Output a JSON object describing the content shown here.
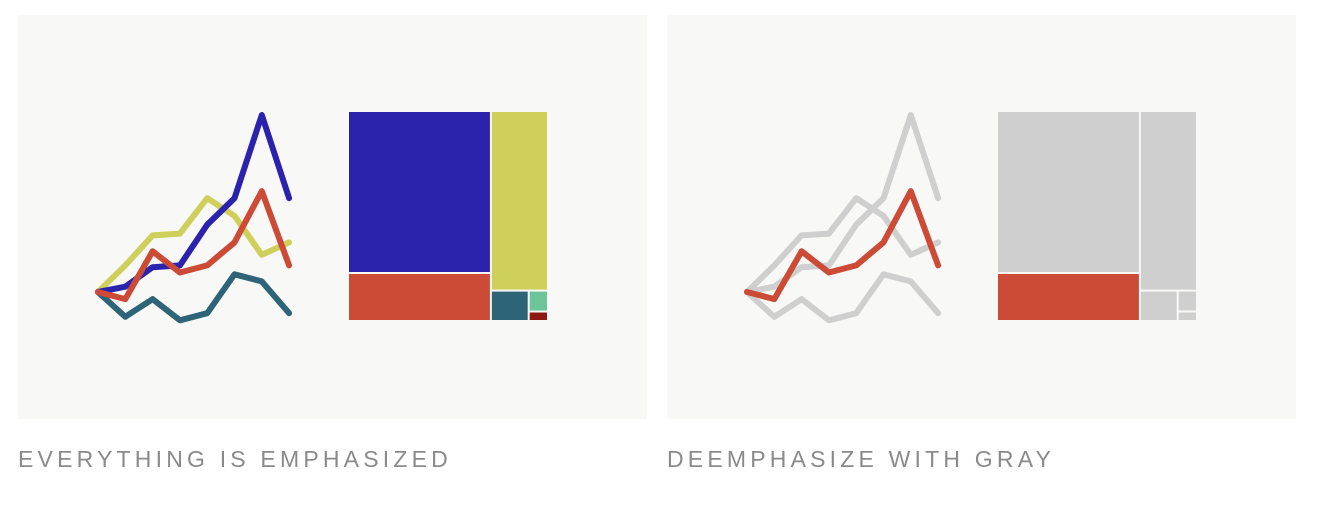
{
  "captions": {
    "left": "EVERYTHING IS EMPHASIZED",
    "right": "DEEMPHASIZE WITH GRAY"
  },
  "colors": {
    "panel_bg": "#f8f8f7",
    "caption": "#8a8a8a",
    "gray": "#cfcfcf",
    "blue": "#2b22ad",
    "yellow": "#cfcf5c",
    "red": "#cb4b37",
    "teal": "#2e6478",
    "mint": "#6cc49a",
    "darkred": "#8c1a12"
  },
  "line_series": [
    {
      "key": "yellow",
      "values": [
        0.0,
        1.5,
        3.2,
        3.3,
        5.3,
        4.3,
        2.1,
        2.8
      ]
    },
    {
      "key": "blue",
      "values": [
        0.0,
        0.3,
        1.4,
        1.5,
        3.8,
        5.3,
        10.0,
        5.3
      ]
    },
    {
      "key": "teal",
      "values": [
        0.0,
        -1.4,
        -0.4,
        -1.6,
        -1.2,
        1.0,
        0.6,
        -1.2
      ]
    },
    {
      "key": "red",
      "values": [
        0.0,
        -0.4,
        2.3,
        1.1,
        1.5,
        2.8,
        5.7,
        1.5
      ]
    }
  ],
  "treemap": {
    "blocks": [
      {
        "key": "blue",
        "weight": 100
      },
      {
        "key": "red",
        "weight": 30
      },
      {
        "key": "yellow",
        "weight": 45
      },
      {
        "key": "teal",
        "weight": 5
      },
      {
        "key": "mint",
        "weight": 1.8
      },
      {
        "key": "darkred",
        "weight": 0.9
      }
    ]
  },
  "highlight_key": "red"
}
